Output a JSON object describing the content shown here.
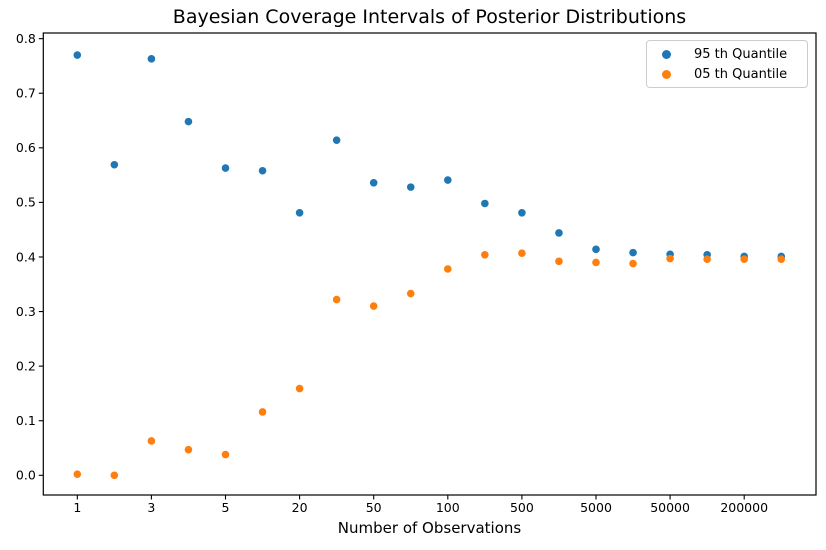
{
  "chart_data": {
    "type": "scatter",
    "title": "Bayesian Coverage Intervals of Posterior Distributions",
    "xlabel": "Number of Observations",
    "ylabel": "",
    "grid": false,
    "legend_position": "upper right",
    "marker_shape": "circle",
    "axis_color": "#000000",
    "background_color": "#ffffff",
    "ylim": [
      -0.036,
      0.812
    ],
    "y_ticks": [
      0.0,
      0.1,
      0.2,
      0.3,
      0.4,
      0.5,
      0.6,
      0.7,
      0.8
    ],
    "x_ticks": {
      "indices": [
        0,
        2,
        4,
        6,
        8,
        10,
        12,
        14,
        16,
        18
      ],
      "labels": [
        "1",
        "3",
        "5",
        "20",
        "50",
        "100",
        "500",
        "5000",
        "50000",
        "200000"
      ]
    },
    "n_points_per_series": 20,
    "x_axis_note": "20 points per series, evenly spaced; only alternate positions carry tick labels",
    "series": [
      {
        "name": "95 th Quantile",
        "color": "#1f77b4",
        "values": [
          0.77,
          0.569,
          0.763,
          0.648,
          0.563,
          0.558,
          0.481,
          0.614,
          0.536,
          0.528,
          0.541,
          0.498,
          0.481,
          0.444,
          0.414,
          0.408,
          0.405,
          0.404,
          0.401,
          0.401
        ]
      },
      {
        "name": "05 th Quantile",
        "color": "#ff7f0e",
        "values": [
          0.002,
          0.0,
          0.063,
          0.047,
          0.038,
          0.116,
          0.159,
          0.322,
          0.31,
          0.333,
          0.378,
          0.404,
          0.407,
          0.392,
          0.39,
          0.388,
          0.397,
          0.396,
          0.396,
          0.396
        ]
      }
    ]
  }
}
